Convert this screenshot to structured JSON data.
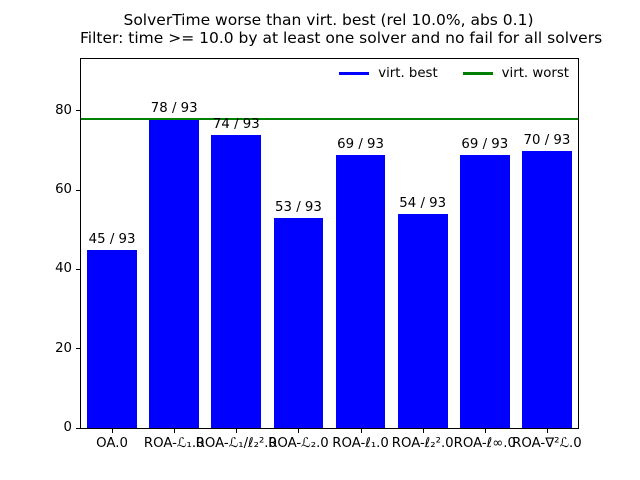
{
  "title": {
    "line1": "SolverTime worse than virt. best (rel 10.0%, abs 0.1)",
    "line2": "Filter: time >= 10.0 by at least one solver and no fail for all solvers"
  },
  "legend": {
    "entries": [
      {
        "label": "virt. best",
        "color": "#0000ff"
      },
      {
        "label": "virt. worst",
        "color": "#008000"
      }
    ],
    "position": "upper right, horizontal, frameless"
  },
  "chart_data": {
    "type": "bar",
    "title": "SolverTime worse than virt. best (rel 10.0%, abs 0.1)\nFilter: time >= 10.0 by at least one solver and no fail for all solvers",
    "categories": [
      "OA.0",
      "ROA-ℒ₁.0",
      "ROA-ℒ₁/ℓ₂².0",
      "ROA-ℒ₂.0",
      "ROA-ℓ₁.0",
      "ROA-ℓ₂².0",
      "ROA-ℓ∞.0",
      "ROA-∇²ℒ.0"
    ],
    "values": [
      45,
      78,
      74,
      53,
      69,
      54,
      69,
      70
    ],
    "denominator": 93,
    "bar_labels": [
      "45 / 93",
      "78 / 93",
      "74 / 93",
      "53 / 93",
      "69 / 93",
      "54 / 93",
      "69 / 93",
      "70 / 93"
    ],
    "bar_color": "#0000ff",
    "hline": {
      "value": 78,
      "color": "#008000",
      "series": "virt. worst"
    },
    "xlabel": "",
    "ylabel": "",
    "ylim": [
      0,
      93.1
    ],
    "yticks": [
      0,
      20,
      40,
      60,
      80
    ],
    "grid": false,
    "bar_width_fraction": 0.8
  }
}
